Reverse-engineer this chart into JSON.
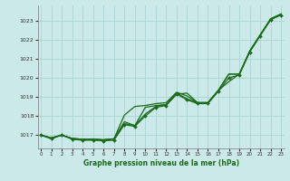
{
  "title": "Graphe pression niveau de la mer (hPa)",
  "xlabel": "Graphe pression niveau de la mer (hPa)",
  "background_color": "#cce9e9",
  "grid_color": "#aad4d4",
  "line_color": "#1a6b1a",
  "ylim": [
    1016.3,
    1023.8
  ],
  "xlim": [
    -0.3,
    23.3
  ],
  "yticks": [
    1017,
    1018,
    1019,
    1020,
    1021,
    1022,
    1023
  ],
  "xticks": [
    0,
    1,
    2,
    3,
    4,
    5,
    6,
    7,
    8,
    9,
    10,
    11,
    12,
    13,
    14,
    15,
    16,
    17,
    18,
    19,
    20,
    21,
    22,
    23
  ],
  "series_smooth1": [
    1017.0,
    1016.85,
    1017.0,
    1016.82,
    1016.78,
    1016.78,
    1016.75,
    1016.8,
    1018.05,
    1018.5,
    1018.55,
    1018.65,
    1018.7,
    1019.25,
    1019.05,
    1018.7,
    1018.7,
    1019.35,
    1020.2,
    1020.2,
    1021.4,
    1022.25,
    1023.1,
    1023.35
  ],
  "series_smooth2": [
    1017.0,
    1016.85,
    1017.0,
    1016.82,
    1016.78,
    1016.78,
    1016.75,
    1016.8,
    1017.7,
    1017.5,
    1018.45,
    1018.55,
    1018.6,
    1019.15,
    1019.2,
    1018.7,
    1018.7,
    1019.35,
    1019.8,
    1020.2,
    1021.4,
    1022.25,
    1023.05,
    1023.35
  ],
  "series_smooth3": [
    1017.0,
    1016.85,
    1017.0,
    1016.82,
    1016.78,
    1016.78,
    1016.75,
    1016.8,
    1017.6,
    1017.5,
    1018.1,
    1018.5,
    1018.6,
    1019.2,
    1018.9,
    1018.7,
    1018.7,
    1019.35,
    1020.2,
    1020.2,
    1021.4,
    1022.25,
    1023.1,
    1023.35
  ],
  "series_markers": [
    1017.0,
    1016.8,
    1017.0,
    1016.78,
    1016.73,
    1016.73,
    1016.7,
    1016.73,
    1017.55,
    1017.45,
    1018.0,
    1018.45,
    1018.55,
    1019.15,
    1018.85,
    1018.65,
    1018.65,
    1019.3,
    1020.0,
    1020.15,
    1021.35,
    1022.2,
    1023.05,
    1023.3
  ]
}
